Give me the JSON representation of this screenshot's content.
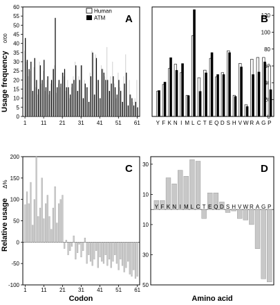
{
  "figure": {
    "ylabel_top": "Usage frequency",
    "ylabel_top_unit": "0/00",
    "ylabel_bottom": "Relative usage",
    "ylabel_bottom_unit": "Δ%",
    "xlabel_left": "Codon",
    "xlabel_right": "Amino acid"
  },
  "chart_data": [
    {
      "panel": "A",
      "type": "bar",
      "xlabel": "",
      "ylabel": "Usage frequency 0/00",
      "ylim": [
        0,
        60
      ],
      "yticks": [
        0,
        5,
        10,
        15,
        20,
        25,
        30,
        35,
        40,
        45,
        50,
        55,
        60
      ],
      "xticks": [
        1,
        11,
        21,
        31,
        41,
        51,
        61
      ],
      "x": [
        1,
        2,
        3,
        4,
        5,
        6,
        7,
        8,
        9,
        10,
        11,
        12,
        13,
        14,
        15,
        16,
        17,
        18,
        19,
        20,
        21,
        22,
        23,
        24,
        25,
        26,
        27,
        28,
        29,
        30,
        31,
        32,
        33,
        34,
        35,
        36,
        37,
        38,
        39,
        40,
        41,
        42,
        43,
        44,
        45,
        46,
        47,
        48,
        49,
        50,
        51,
        52,
        53,
        54,
        55,
        56,
        57,
        58,
        59,
        60,
        61
      ],
      "legend_position": "top-right",
      "series": [
        {
          "name": "Human",
          "color": "#d8d8d8",
          "values": [
            36,
            30,
            22,
            25,
            14,
            27,
            16,
            12,
            30,
            18,
            25,
            14,
            20,
            12,
            18,
            26,
            28,
            13,
            18,
            16,
            24,
            22,
            14,
            20,
            10,
            16,
            22,
            30,
            14,
            22,
            28,
            10,
            20,
            16,
            8,
            24,
            36,
            12,
            34,
            20,
            10,
            28,
            26,
            22,
            38,
            14,
            22,
            30,
            18,
            10,
            24,
            16,
            8,
            22,
            34,
            6,
            20,
            12,
            8,
            10,
            20
          ]
        },
        {
          "name": "ATM",
          "color": "#000000",
          "values": [
            43,
            31,
            26,
            30,
            14,
            32,
            20,
            15,
            28,
            20,
            31,
            16,
            22,
            14,
            20,
            26,
            54,
            16,
            20,
            18,
            24,
            26,
            16,
            16,
            12,
            18,
            20,
            28,
            14,
            20,
            28,
            10,
            18,
            16,
            8,
            22,
            35,
            12,
            32,
            20,
            10,
            26,
            24,
            20,
            20,
            14,
            18,
            22,
            16,
            12,
            20,
            14,
            8,
            18,
            24,
            6,
            12,
            10,
            6,
            8,
            5
          ]
        }
      ]
    },
    {
      "panel": "B",
      "type": "bar",
      "xlabel": "",
      "ylabel": "",
      "ylim": [
        0,
        130
      ],
      "yticks": [
        0,
        20,
        40,
        60,
        80,
        100,
        120
      ],
      "categories": [
        "Y",
        "F",
        "K",
        "N",
        "I",
        "M",
        "L",
        "C",
        "T",
        "E",
        "Q",
        "D",
        "S",
        "H",
        "V",
        "W",
        "R",
        "A",
        "G",
        "P"
      ],
      "legend_position": "none",
      "series": [
        {
          "name": "Human",
          "color": "#ffffff",
          "values": [
            30,
            38,
            57,
            62,
            52,
            25,
            96,
            46,
            55,
            69,
            47,
            52,
            78,
            25,
            63,
            14,
            68,
            70,
            70,
            60
          ]
        },
        {
          "name": "ATM",
          "color": "#000000",
          "values": [
            31,
            41,
            70,
            55,
            63,
            25,
            127,
            30,
            52,
            76,
            50,
            50,
            76,
            24,
            59,
            12,
            50,
            53,
            65,
            32
          ]
        }
      ]
    },
    {
      "panel": "C",
      "type": "bar",
      "xlabel": "Codon",
      "ylabel": "Relative usage Δ%",
      "ylim": [
        -100,
        200
      ],
      "yticks": [
        -100,
        -50,
        0,
        50,
        100,
        150,
        200
      ],
      "xticks": [
        1,
        11,
        21,
        31,
        41,
        51,
        61
      ],
      "x": [
        1,
        2,
        3,
        4,
        5,
        6,
        7,
        8,
        9,
        10,
        11,
        12,
        13,
        14,
        15,
        16,
        17,
        18,
        19,
        20,
        21,
        22,
        23,
        24,
        25,
        26,
        27,
        28,
        29,
        30,
        31,
        32,
        33,
        34,
        35,
        36,
        37,
        38,
        39,
        40,
        41,
        42,
        43,
        44,
        45,
        46,
        47,
        48,
        49,
        50,
        51,
        52,
        53,
        54,
        55,
        56,
        57,
        58,
        59,
        60,
        61
      ],
      "series": [
        {
          "name": "",
          "color": "#c8c8c8",
          "values": [
            88,
            118,
            90,
            140,
            40,
            100,
            200,
            60,
            80,
            150,
            55,
            90,
            110,
            60,
            30,
            80,
            130,
            45,
            90,
            100,
            110,
            -15,
            5,
            -30,
            -20,
            -10,
            15,
            -40,
            -25,
            -5,
            -35,
            -20,
            10,
            -50,
            -30,
            -45,
            -55,
            -40,
            -20,
            -60,
            -35,
            -45,
            -50,
            -30,
            -55,
            -40,
            -60,
            -45,
            -30,
            -50,
            -65,
            -40,
            -55,
            -70,
            -60,
            -45,
            -75,
            -80,
            -65,
            -85,
            -80
          ]
        }
      ]
    },
    {
      "panel": "D",
      "type": "bar",
      "xlabel": "Amino acid",
      "ylabel": "",
      "ylim": [
        -50,
        35
      ],
      "ytick_labels": [
        "30",
        "10",
        "10",
        "30",
        "50"
      ],
      "yticks": [
        30,
        10,
        -10,
        -30,
        -50
      ],
      "categories": [
        "Y",
        "F",
        "K",
        "N",
        "I",
        "M",
        "L",
        "C",
        "T",
        "E",
        "Q",
        "D",
        "S",
        "H",
        "V",
        "W",
        "R",
        "A",
        "G",
        "P"
      ],
      "series": [
        {
          "name": "",
          "color": "#c8c8c8",
          "values": [
            6,
            6,
            21,
            17,
            26,
            22,
            33,
            32,
            -6,
            11,
            11,
            5,
            -2,
            -1,
            -6,
            -7,
            -10,
            -26,
            -46,
            -48
          ]
        }
      ]
    }
  ]
}
